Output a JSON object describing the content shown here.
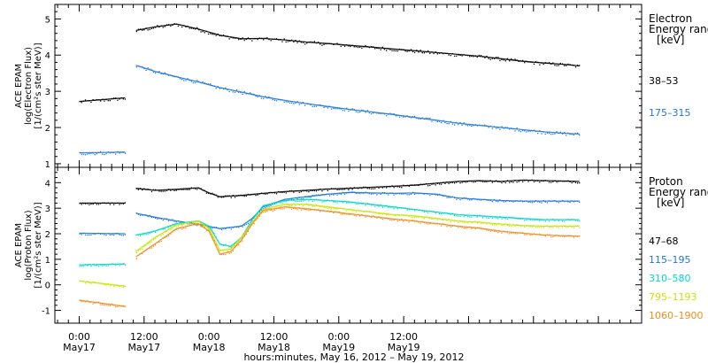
{
  "chart_data": [
    {
      "type": "scatter",
      "ylabel_lines": [
        "ACE EPAM",
        "log(Electron Flux)",
        "[1/(cm²s ster MeV)]"
      ],
      "ylim": [
        0.9,
        5.4
      ],
      "yticks": [
        1,
        2,
        3,
        4,
        5
      ],
      "legend_title_lines": [
        "Electron",
        "Energy range",
        "[keV]"
      ],
      "series": [
        {
          "name": "38–53",
          "color": "#000000",
          "segments": [
            {
              "x": [
                0,
                8.5
              ],
              "y": [
                2.72,
                2.82
              ]
            },
            {
              "x": [
                10.5,
                14,
                18,
                22,
                26,
                30,
                34,
                38,
                42,
                46,
                50,
                54,
                58,
                62,
                66,
                70,
                74,
                78,
                82,
                86,
                90,
                92.5
              ],
              "y": [
                4.68,
                4.78,
                4.86,
                4.72,
                4.55,
                4.45,
                4.46,
                4.42,
                4.36,
                4.32,
                4.27,
                4.22,
                4.17,
                4.12,
                4.07,
                4.02,
                3.97,
                3.9,
                3.83,
                3.78,
                3.74,
                3.7
              ]
            }
          ]
        },
        {
          "name": "175–315",
          "color": "#1e78dc",
          "segments": [
            {
              "x": [
                0,
                8.5
              ],
              "y": [
                1.3,
                1.32
              ]
            },
            {
              "x": [
                10.5,
                14,
                18,
                22,
                26,
                30,
                34,
                38,
                42,
                46,
                50,
                54,
                58,
                62,
                66,
                70,
                74,
                78,
                82,
                86,
                90,
                92.5
              ],
              "y": [
                3.72,
                3.55,
                3.4,
                3.26,
                3.1,
                2.98,
                2.85,
                2.75,
                2.66,
                2.58,
                2.5,
                2.43,
                2.36,
                2.28,
                2.2,
                2.12,
                2.06,
                2.0,
                1.94,
                1.88,
                1.84,
                1.82
              ]
            }
          ]
        }
      ]
    },
    {
      "type": "scatter",
      "ylabel_lines": [
        "ACE EPAM",
        "log(Proton Flux)",
        "[1/(cm²s ster MeV)]"
      ],
      "ylim": [
        -1.5,
        4.6
      ],
      "yticks": [
        -1,
        0,
        1,
        2,
        3,
        4
      ],
      "legend_title_lines": [
        "Proton",
        "Energy range",
        "[keV]"
      ],
      "series": [
        {
          "name": "47–68",
          "color": "#000000",
          "segments": [
            {
              "x": [
                0,
                8.5
              ],
              "y": [
                3.2,
                3.2
              ]
            },
            {
              "x": [
                10.5,
                14,
                18,
                22,
                24,
                26,
                30,
                34,
                38,
                42,
                46,
                50,
                54,
                58,
                62,
                66,
                70,
                74,
                78,
                82,
                86,
                92.5
              ],
              "y": [
                3.78,
                3.7,
                3.74,
                3.8,
                3.6,
                3.45,
                3.5,
                3.58,
                3.65,
                3.7,
                3.75,
                3.78,
                3.82,
                3.86,
                3.9,
                3.98,
                4.05,
                4.08,
                4.05,
                4.1,
                4.08,
                4.05
              ]
            }
          ]
        },
        {
          "name": "115–195",
          "color": "#1e78dc",
          "segments": [
            {
              "x": [
                0,
                8.5
              ],
              "y": [
                2.02,
                2.0
              ]
            },
            {
              "x": [
                10.5,
                14,
                18,
                22,
                26,
                30,
                32,
                34,
                38,
                42,
                46,
                50,
                54,
                58,
                62,
                66,
                70,
                74,
                78,
                82,
                86,
                92.5
              ],
              "y": [
                2.8,
                2.65,
                2.5,
                2.38,
                2.2,
                2.3,
                2.6,
                3.05,
                3.35,
                3.45,
                3.55,
                3.62,
                3.6,
                3.58,
                3.6,
                3.55,
                3.4,
                3.35,
                3.3,
                3.28,
                3.28,
                3.28
              ]
            }
          ]
        },
        {
          "name": "310–580",
          "color": "#00d7c8",
          "segments": [
            {
              "x": [
                0,
                8.5
              ],
              "y": [
                0.78,
                0.82
              ]
            },
            {
              "x": [
                10.5,
                14,
                18,
                22,
                24,
                26,
                28,
                30,
                32,
                34,
                38,
                42,
                46,
                50,
                54,
                58,
                62,
                66,
                70,
                74,
                78,
                82,
                86,
                92.5
              ],
              "y": [
                1.95,
                2.1,
                2.4,
                2.5,
                2.3,
                1.6,
                1.5,
                1.85,
                2.55,
                3.1,
                3.3,
                3.35,
                3.3,
                3.25,
                3.15,
                3.05,
                2.95,
                2.85,
                2.75,
                2.7,
                2.65,
                2.6,
                2.55,
                2.55
              ]
            }
          ]
        },
        {
          "name": "795–1193",
          "color": "#c8e600",
          "segments": [
            {
              "x": [
                0,
                8.5
              ],
              "y": [
                0.15,
                -0.05
              ]
            },
            {
              "x": [
                10.5,
                14,
                18,
                22,
                24,
                26,
                28,
                30,
                32,
                34,
                38,
                42,
                46,
                50,
                54,
                58,
                62,
                66,
                70,
                74,
                78,
                82,
                86,
                92.5
              ],
              "y": [
                1.3,
                1.85,
                2.35,
                2.5,
                2.2,
                1.35,
                1.4,
                1.85,
                2.45,
                2.95,
                3.15,
                3.15,
                3.05,
                2.95,
                2.85,
                2.75,
                2.7,
                2.6,
                2.5,
                2.45,
                2.38,
                2.32,
                2.3,
                2.3
              ]
            }
          ]
        },
        {
          "name": "1060–1900",
          "color": "#f08c1e",
          "segments": [
            {
              "x": [
                0,
                8.5
              ],
              "y": [
                -0.6,
                -0.85
              ]
            },
            {
              "x": [
                10.5,
                14,
                18,
                22,
                24,
                26,
                28,
                30,
                32,
                34,
                38,
                42,
                46,
                50,
                54,
                58,
                62,
                66,
                70,
                74,
                78,
                82,
                86,
                92.5
              ],
              "y": [
                1.1,
                1.6,
                2.2,
                2.4,
                2.1,
                1.2,
                1.3,
                1.75,
                2.4,
                2.9,
                3.05,
                2.98,
                2.88,
                2.78,
                2.68,
                2.58,
                2.5,
                2.4,
                2.3,
                2.22,
                2.1,
                2.02,
                1.95,
                1.9
              ]
            }
          ]
        }
      ]
    }
  ],
  "x_axis": {
    "range": [
      -4.5,
      104
    ],
    "ticks": [
      {
        "x": 0,
        "label": "0:00",
        "date": "May17"
      },
      {
        "x": 12,
        "label": "12:00",
        "date": "May17"
      },
      {
        "x": 24,
        "label": "0:00",
        "date": "May18"
      },
      {
        "x": 36,
        "label": "12:00",
        "date": "May18"
      },
      {
        "x": 48,
        "label": "0:00",
        "date": "May19"
      },
      {
        "x": 60,
        "label": "12:00",
        "date": "May19"
      }
    ],
    "title": "hours:minutes, May 16, 2012 – May 19, 2012"
  }
}
